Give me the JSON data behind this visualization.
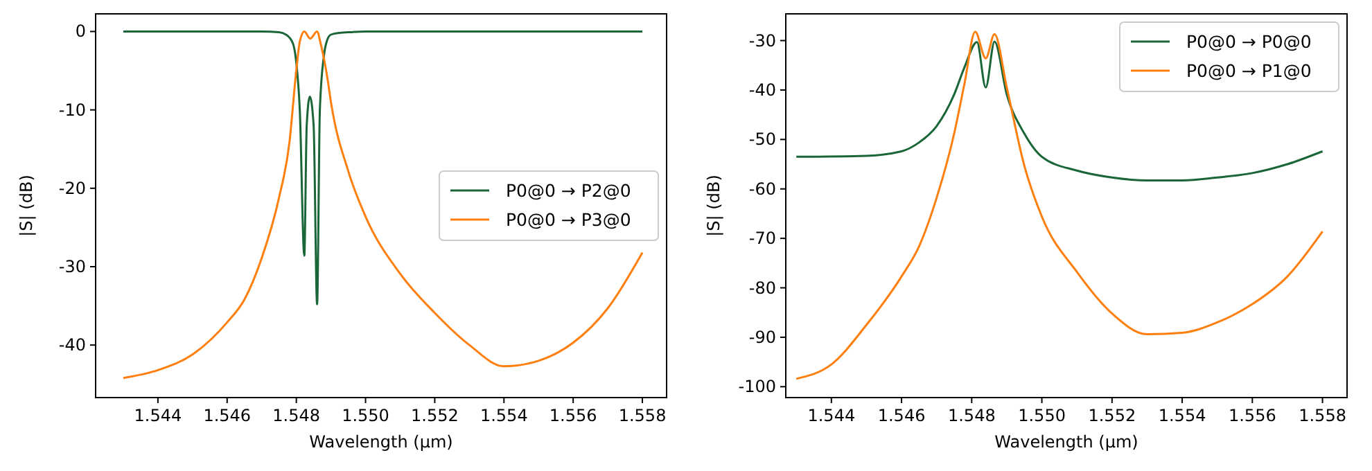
{
  "chart_data": [
    {
      "type": "line",
      "xlabel": "Wavelength (µm)",
      "ylabel": "|S| (dB)",
      "xlim": [
        1.5422,
        1.5587
      ],
      "ylim": [
        -46.7,
        2.25
      ],
      "xticks": [
        1.544,
        1.546,
        1.548,
        {
          "value": 1.55,
          "label": "1.550"
        },
        1.552,
        1.554,
        1.556,
        1.558
      ],
      "yticks": [
        -40,
        -30,
        -20,
        -10,
        0
      ],
      "grid": false,
      "legend": "right",
      "series": [
        {
          "name": "P0@0 → P2@0",
          "color": "#1a6638",
          "x": [
            1.543,
            1.545,
            1.547,
            1.5475,
            1.5477,
            1.5479,
            1.548,
            1.5481,
            1.54823,
            1.5483,
            1.54839,
            1.5485,
            1.5486,
            1.54868,
            1.5488,
            1.5489,
            1.549,
            1.5492,
            1.5495,
            1.55,
            1.552,
            1.555,
            1.558
          ],
          "values": [
            0,
            0,
            0,
            -0.1,
            -0.4,
            -1.5,
            -4,
            -10,
            -28.6,
            -12,
            -8.3,
            -12,
            -34.8,
            -10,
            -3,
            -1,
            -0.4,
            -0.2,
            -0.1,
            0,
            0,
            0,
            0
          ]
        },
        {
          "name": "P0@0 → P3@0",
          "color": "#ff7f0e",
          "x": [
            1.543,
            1.544,
            1.545,
            1.546,
            1.5465,
            1.547,
            1.5475,
            1.5478,
            1.548,
            1.5481,
            1.54823,
            1.5484,
            1.5486,
            1.5487,
            1.5489,
            1.549,
            1.5495,
            1.55,
            1.551,
            1.552,
            1.553,
            1.554,
            1.555,
            1.556,
            1.557,
            1.558
          ],
          "values": [
            -44.2,
            -43.2,
            -41.2,
            -37.1,
            -34.2,
            -28.9,
            -21.2,
            -14.2,
            -4.9,
            -1.3,
            0,
            -0.9,
            0,
            -1.5,
            -6,
            -9,
            -17.8,
            -23.6,
            -30.9,
            -35.9,
            -40,
            -42.7,
            -42,
            -39.7,
            -35.3,
            -28.2
          ]
        }
      ]
    },
    {
      "type": "line",
      "xlabel": "Wavelength (µm)",
      "ylabel": "|S| (dB)",
      "xlim": [
        1.5427,
        1.5587
      ],
      "ylim": [
        -102.2,
        -24.6
      ],
      "xticks": [
        1.544,
        1.546,
        1.548,
        {
          "value": 1.55,
          "label": "1.550"
        },
        1.552,
        1.554,
        1.556,
        1.558
      ],
      "yticks": [
        -100,
        -90,
        -80,
        -70,
        -60,
        -50,
        -40,
        -30
      ],
      "grid": false,
      "legend": "top right",
      "series": [
        {
          "name": "P0@0 → P0@0",
          "color": "#1a6638",
          "x": [
            1.543,
            1.545,
            1.546,
            1.5465,
            1.547,
            1.5475,
            1.5478,
            1.54815,
            1.5484,
            1.54865,
            1.549,
            1.5495,
            1.55,
            1.551,
            1.552,
            1.553,
            1.554,
            1.555,
            1.556,
            1.557,
            1.558
          ],
          "values": [
            -53.5,
            -53.3,
            -52.4,
            -50.6,
            -47.3,
            -40.9,
            -35.3,
            -30.3,
            -39.5,
            -30.2,
            -40.9,
            -48.8,
            -53.5,
            -56.3,
            -57.7,
            -58.3,
            -58.3,
            -57.7,
            -56.8,
            -55,
            -52.4
          ]
        },
        {
          "name": "P0@0 → P1@0",
          "color": "#ff7f0e",
          "x": [
            1.543,
            1.544,
            1.545,
            1.546,
            1.5465,
            1.547,
            1.5475,
            1.5478,
            1.5481,
            1.5484,
            1.54865,
            1.549,
            1.5495,
            1.55,
            1.551,
            1.552,
            1.553,
            1.554,
            1.555,
            1.556,
            1.557,
            1.558
          ],
          "values": [
            -98.4,
            -95.5,
            -87.5,
            -77.7,
            -71.6,
            -61.8,
            -48.8,
            -38.5,
            -28.2,
            -33.6,
            -28.7,
            -39.5,
            -55.3,
            -65.6,
            -76.8,
            -85.2,
            -89.4,
            -89.1,
            -87,
            -83.3,
            -77.7,
            -68.6
          ]
        }
      ]
    }
  ]
}
